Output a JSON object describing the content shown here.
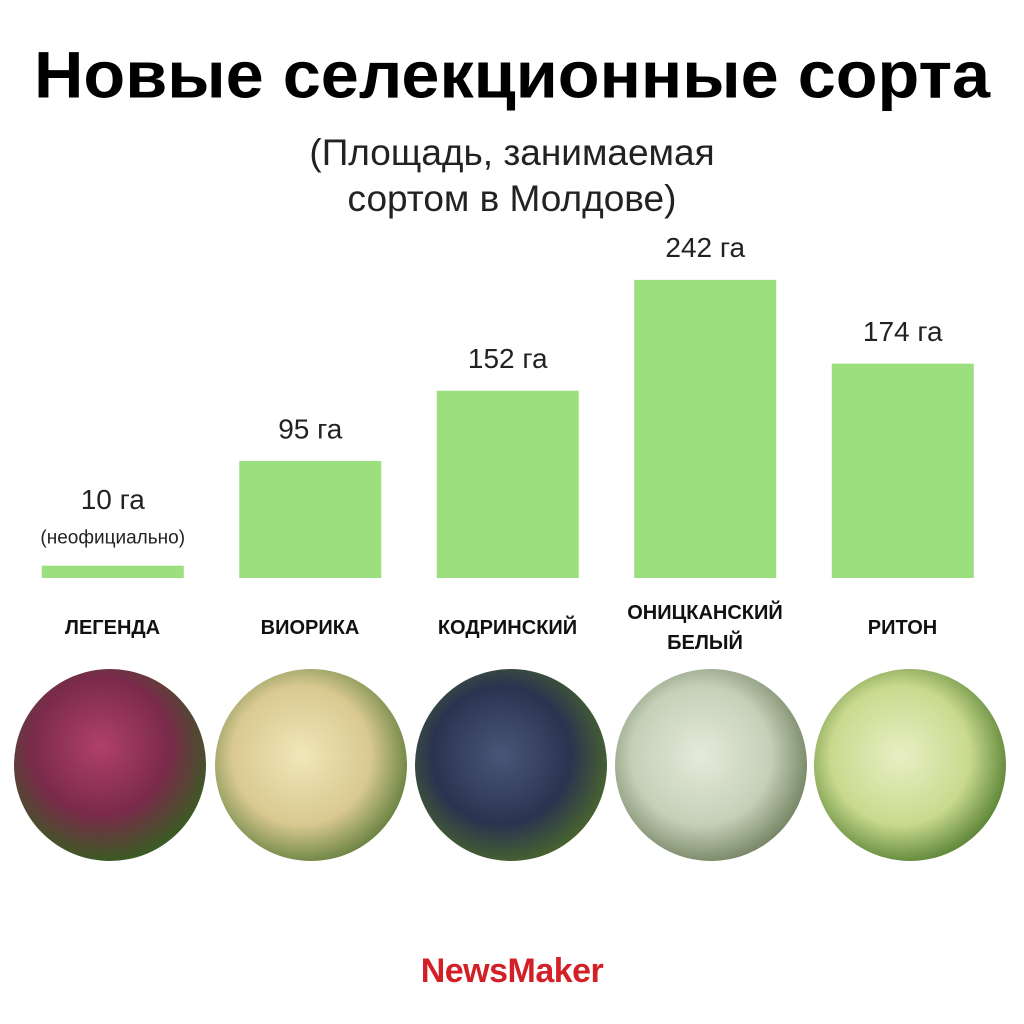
{
  "chart_data": {
    "type": "bar",
    "title": "Новые селекционные сорта",
    "subtitle": "(Площадь, занимаемая сортом в Молдове)",
    "categories": [
      "ЛЕГЕНДА",
      "ВИОРИКА",
      "КОДРИНСКИЙ",
      "ОНИЦКАНСКИЙ БЕЛЫЙ",
      "РИТОН"
    ],
    "values": [
      10,
      95,
      152,
      242,
      174
    ],
    "value_labels": [
      "10 га",
      "95 га",
      "152 га",
      "242 га",
      "174 га"
    ],
    "annotation": "(неофициально)",
    "color": "#9cdf7f"
  },
  "brand": "NewsMaker"
}
